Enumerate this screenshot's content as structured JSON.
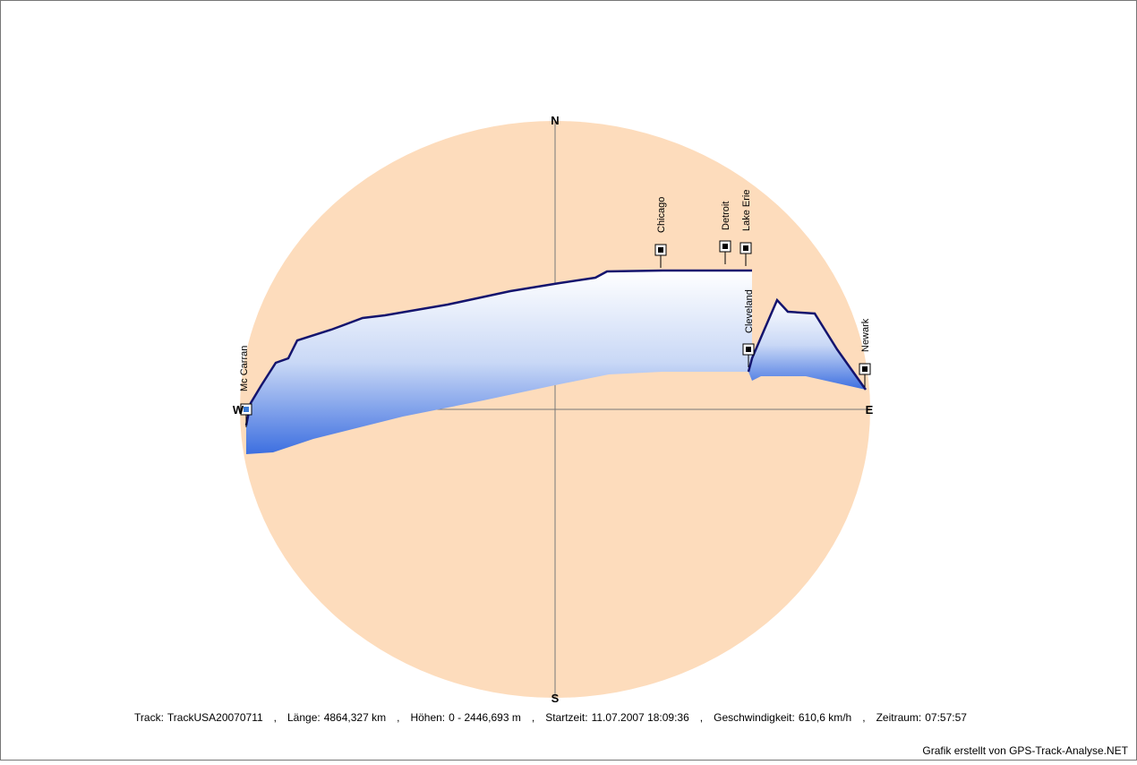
{
  "compass": {
    "north": "N",
    "south": "S",
    "west": "W",
    "east": "E"
  },
  "waypoints": [
    {
      "label": "Mc Carran"
    },
    {
      "label": "Chicago"
    },
    {
      "label": "Detroit"
    },
    {
      "label": "Lake Erie"
    },
    {
      "label": "Cleveland"
    },
    {
      "label": "Newark"
    }
  ],
  "footer": {
    "separator": ",",
    "items": [
      {
        "label": "Track:",
        "value": "TrackUSA20070711"
      },
      {
        "label": "Länge:",
        "value": "4864,327 km"
      },
      {
        "label": "Höhen:",
        "value": "0 - 2446,693 m"
      },
      {
        "label": "Startzeit:",
        "value": "11.07.2007 18:09:36"
      },
      {
        "label": "Geschwindigkeit:",
        "value": "610,6 km/h"
      },
      {
        "label": "Zeitraum:",
        "value": "07:57:57"
      }
    ]
  },
  "credit": "Grafik erstellt von GPS-Track-Analyse.NET"
}
